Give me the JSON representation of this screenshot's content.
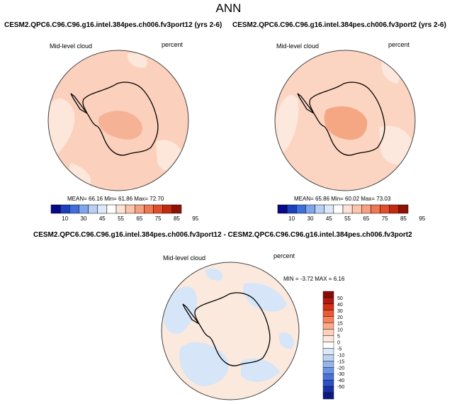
{
  "title": "ANN",
  "panels": [
    {
      "title": "CESM2.QPC6.C96.C96.g16.intel.384pes.ch006.fv3port12 (yrs 2-6)",
      "left_label": "Mid-level cloud",
      "right_label": "percent",
      "stats": "MEAN= 66.16  Min= 61.86  Max= 72.70"
    },
    {
      "title": "CESM2.QPC6.C96.C96.g16.intel.384pes.ch006.fv3port2 (yrs 2-6)",
      "left_label": "Mid-level cloud",
      "right_label": "percent",
      "stats": "MEAN= 65.86  Min= 60.02  Max= 73.03"
    },
    {
      "title": "CESM2.QPC6.C96.C96.g16.intel.384pes.ch006.fv3port12 - CESM2.QPC6.C96.C96.g16.intel.384pes.ch006.fv3port2",
      "left_label": "Mid-level cloud",
      "right_label": "percent",
      "stats": "MIN = -3.72  MAX =  6.16"
    }
  ],
  "abs_colorbar": {
    "labels": [
      "10",
      "30",
      "45",
      "55",
      "65",
      "75",
      "85",
      "95"
    ],
    "colors": [
      "#08088a",
      "#1c3fbf",
      "#3f6fdc",
      "#7fa6ec",
      "#b9cff4",
      "#dde8f9",
      "#ffffff",
      "#fde3d6",
      "#fbc5ac",
      "#f7a182",
      "#ef7753",
      "#e24e2b",
      "#c4290f",
      "#8e1207"
    ]
  },
  "diff_colorbar": {
    "labels": [
      "50",
      "40",
      "30",
      "20",
      "15",
      "10",
      "5",
      "0",
      "-5",
      "-10",
      "-15",
      "-20",
      "-30",
      "-40",
      "-50"
    ],
    "colors": [
      "#8a0a0a",
      "#b01a0f",
      "#d2301a",
      "#ea5a34",
      "#f4825f",
      "#f9ab8a",
      "#fcd0bb",
      "#fde8de",
      "#ffffff",
      "#dce8f8",
      "#bcd3f2",
      "#96b6eb",
      "#6e95e2",
      "#4c74d8",
      "#2f50c4",
      "#1c30a6",
      "#0d1880"
    ]
  },
  "colors": {
    "continent_outline": "#000000",
    "panel1_base": "#fbd0bc",
    "panel1_dark": "#f6b294",
    "panel1_light": "#fde6da",
    "panel2_base": "#fcd5c2",
    "panel2_dark": "#f5a783",
    "panel2_light": "#fde8dd",
    "diff_base": "#fbe9dd",
    "diff_blue": "#d6e6f8"
  }
}
